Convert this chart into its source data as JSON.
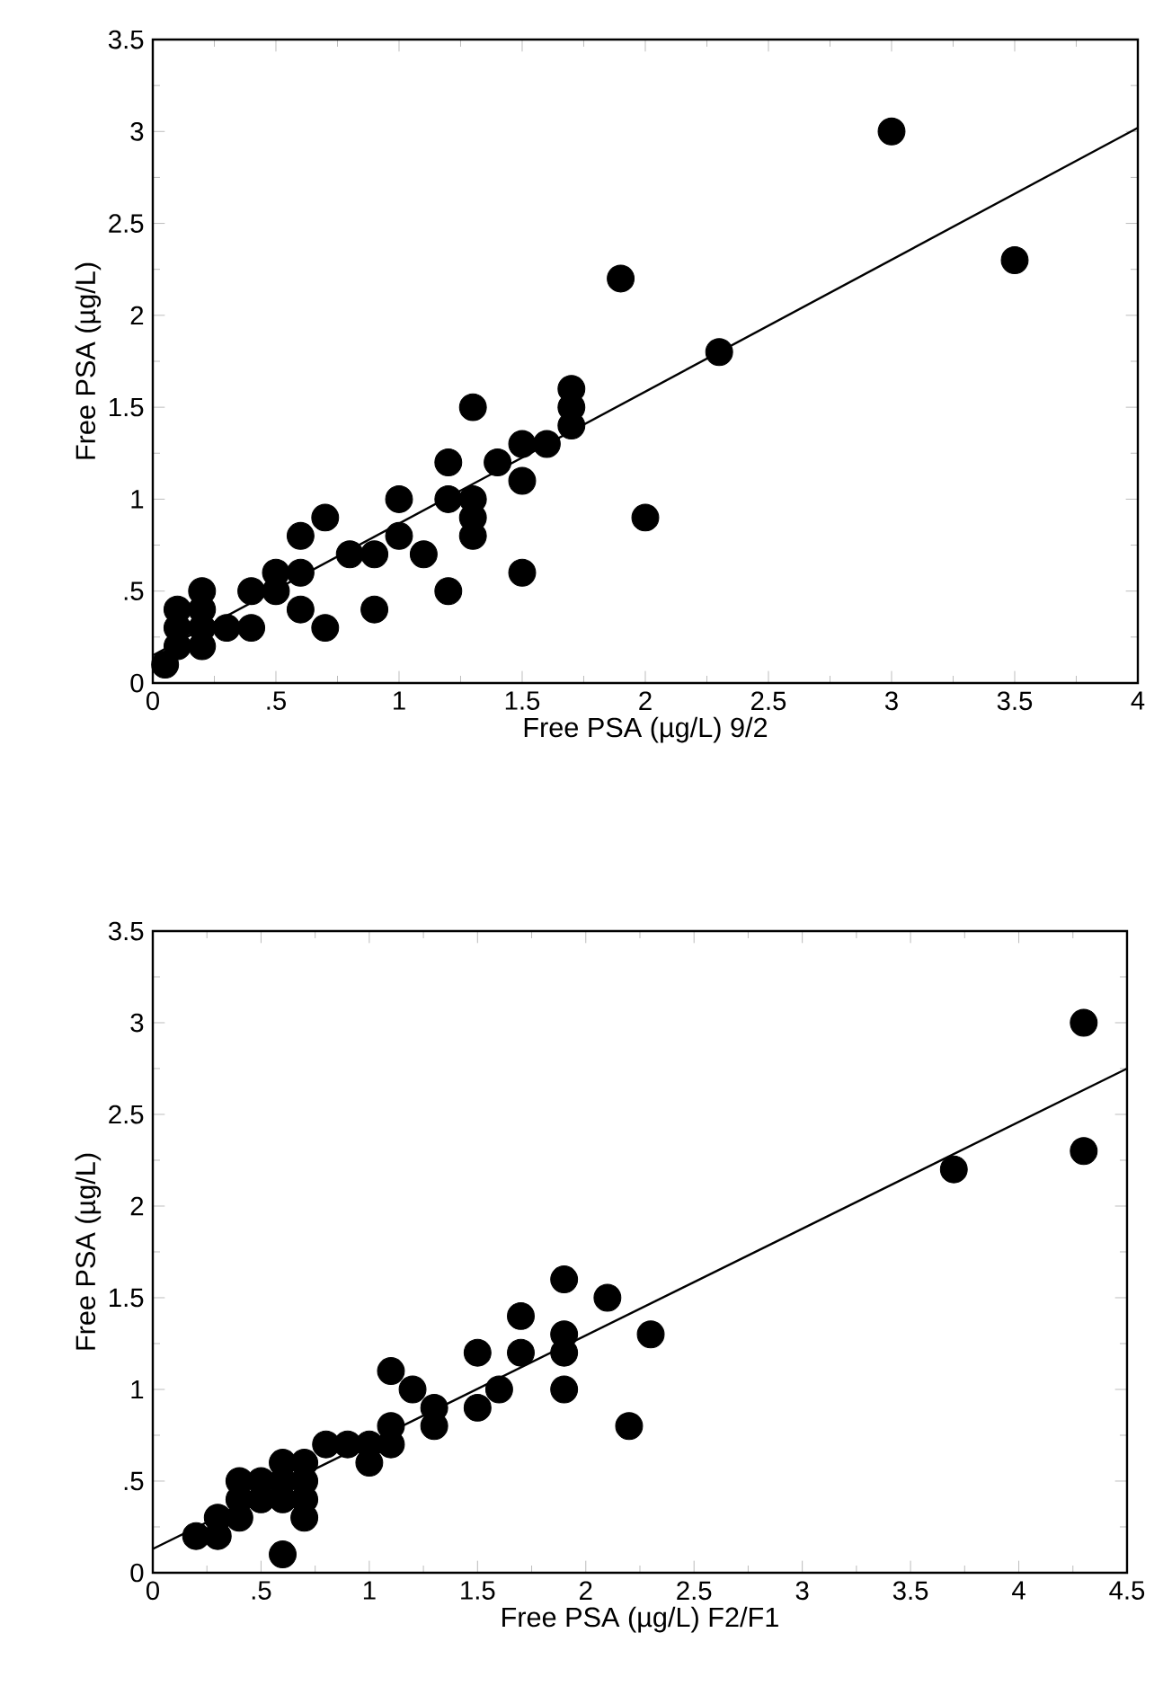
{
  "chart_data": [
    {
      "type": "scatter",
      "xlabel": "Free PSA (µg/L) 9/2",
      "ylabel": "Free PSA (µg/L)",
      "xlim": [
        0,
        4
      ],
      "ylim": [
        0,
        3.5
      ],
      "xticks": [
        0,
        {
          "value": 0.5,
          "label": ".5"
        },
        1,
        1.5,
        2,
        2.5,
        3,
        3.5,
        4
      ],
      "yticks": [
        0,
        {
          "value": 0.5,
          "label": ".5"
        },
        1,
        1.5,
        2,
        2.5,
        3,
        3.5
      ],
      "series": [
        {
          "marker": "circle",
          "color": "#000000",
          "x": [
            0.05,
            0.1,
            0.1,
            0.1,
            0.2,
            0.2,
            0.2,
            0.2,
            0.3,
            0.4,
            0.4,
            0.5,
            0.5,
            0.6,
            0.6,
            0.6,
            0.7,
            0.7,
            0.8,
            0.9,
            0.9,
            1.0,
            1.0,
            1.1,
            1.2,
            1.2,
            1.2,
            1.3,
            1.3,
            1.3,
            1.3,
            1.4,
            1.5,
            1.5,
            1.5,
            1.6,
            1.7,
            1.7,
            1.7,
            1.9,
            2.0,
            2.3,
            3.0,
            3.5
          ],
          "values": [
            0.1,
            0.2,
            0.3,
            0.4,
            0.2,
            0.3,
            0.4,
            0.5,
            0.3,
            0.3,
            0.5,
            0.5,
            0.6,
            0.4,
            0.6,
            0.8,
            0.3,
            0.9,
            0.7,
            0.4,
            0.7,
            0.8,
            1.0,
            0.7,
            0.5,
            1.0,
            1.2,
            0.8,
            0.9,
            1.0,
            1.5,
            1.2,
            0.6,
            1.1,
            1.3,
            1.3,
            1.4,
            1.5,
            1.6,
            2.2,
            0.9,
            1.8,
            3.0,
            2.3
          ]
        },
        {
          "type": "line",
          "marker": "none",
          "line_style": "solid",
          "color": "#000000",
          "x": [
            0,
            4
          ],
          "values": [
            0.15,
            3.02
          ]
        }
      ]
    },
    {
      "type": "scatter",
      "xlabel": "Free PSA (µg/L) F2/F1",
      "ylabel": "Free PSA  (µg/L)",
      "xlim": [
        0,
        4.5
      ],
      "ylim": [
        0,
        3.5
      ],
      "xticks": [
        0,
        {
          "value": 0.5,
          "label": ".5"
        },
        1,
        1.5,
        2,
        2.5,
        3,
        3.5,
        4,
        4.5
      ],
      "yticks": [
        0,
        {
          "value": 0.5,
          "label": ".5"
        },
        1,
        1.5,
        2,
        2.5,
        3,
        3.5
      ],
      "series": [
        {
          "marker": "circle",
          "color": "#000000",
          "x": [
            0.2,
            0.3,
            0.3,
            0.4,
            0.4,
            0.4,
            0.5,
            0.5,
            0.6,
            0.6,
            0.6,
            0.6,
            0.7,
            0.7,
            0.7,
            0.7,
            0.8,
            0.9,
            1.0,
            1.0,
            1.1,
            1.1,
            1.1,
            1.2,
            1.3,
            1.3,
            1.5,
            1.5,
            1.6,
            1.7,
            1.7,
            1.9,
            1.9,
            1.9,
            1.9,
            2.1,
            2.2,
            2.3,
            3.7,
            4.3,
            4.3
          ],
          "values": [
            0.2,
            0.2,
            0.3,
            0.3,
            0.4,
            0.5,
            0.4,
            0.5,
            0.1,
            0.4,
            0.5,
            0.6,
            0.3,
            0.4,
            0.5,
            0.6,
            0.7,
            0.7,
            0.6,
            0.7,
            0.7,
            0.8,
            1.1,
            1.0,
            0.8,
            0.9,
            0.9,
            1.2,
            1.0,
            1.2,
            1.4,
            1.0,
            1.2,
            1.3,
            1.6,
            1.5,
            0.8,
            1.3,
            2.2,
            2.3,
            3.0
          ]
        },
        {
          "type": "line",
          "marker": "none",
          "line_style": "solid",
          "color": "#000000",
          "x": [
            0,
            4.5
          ],
          "values": [
            0.13,
            2.75
          ]
        }
      ]
    }
  ]
}
